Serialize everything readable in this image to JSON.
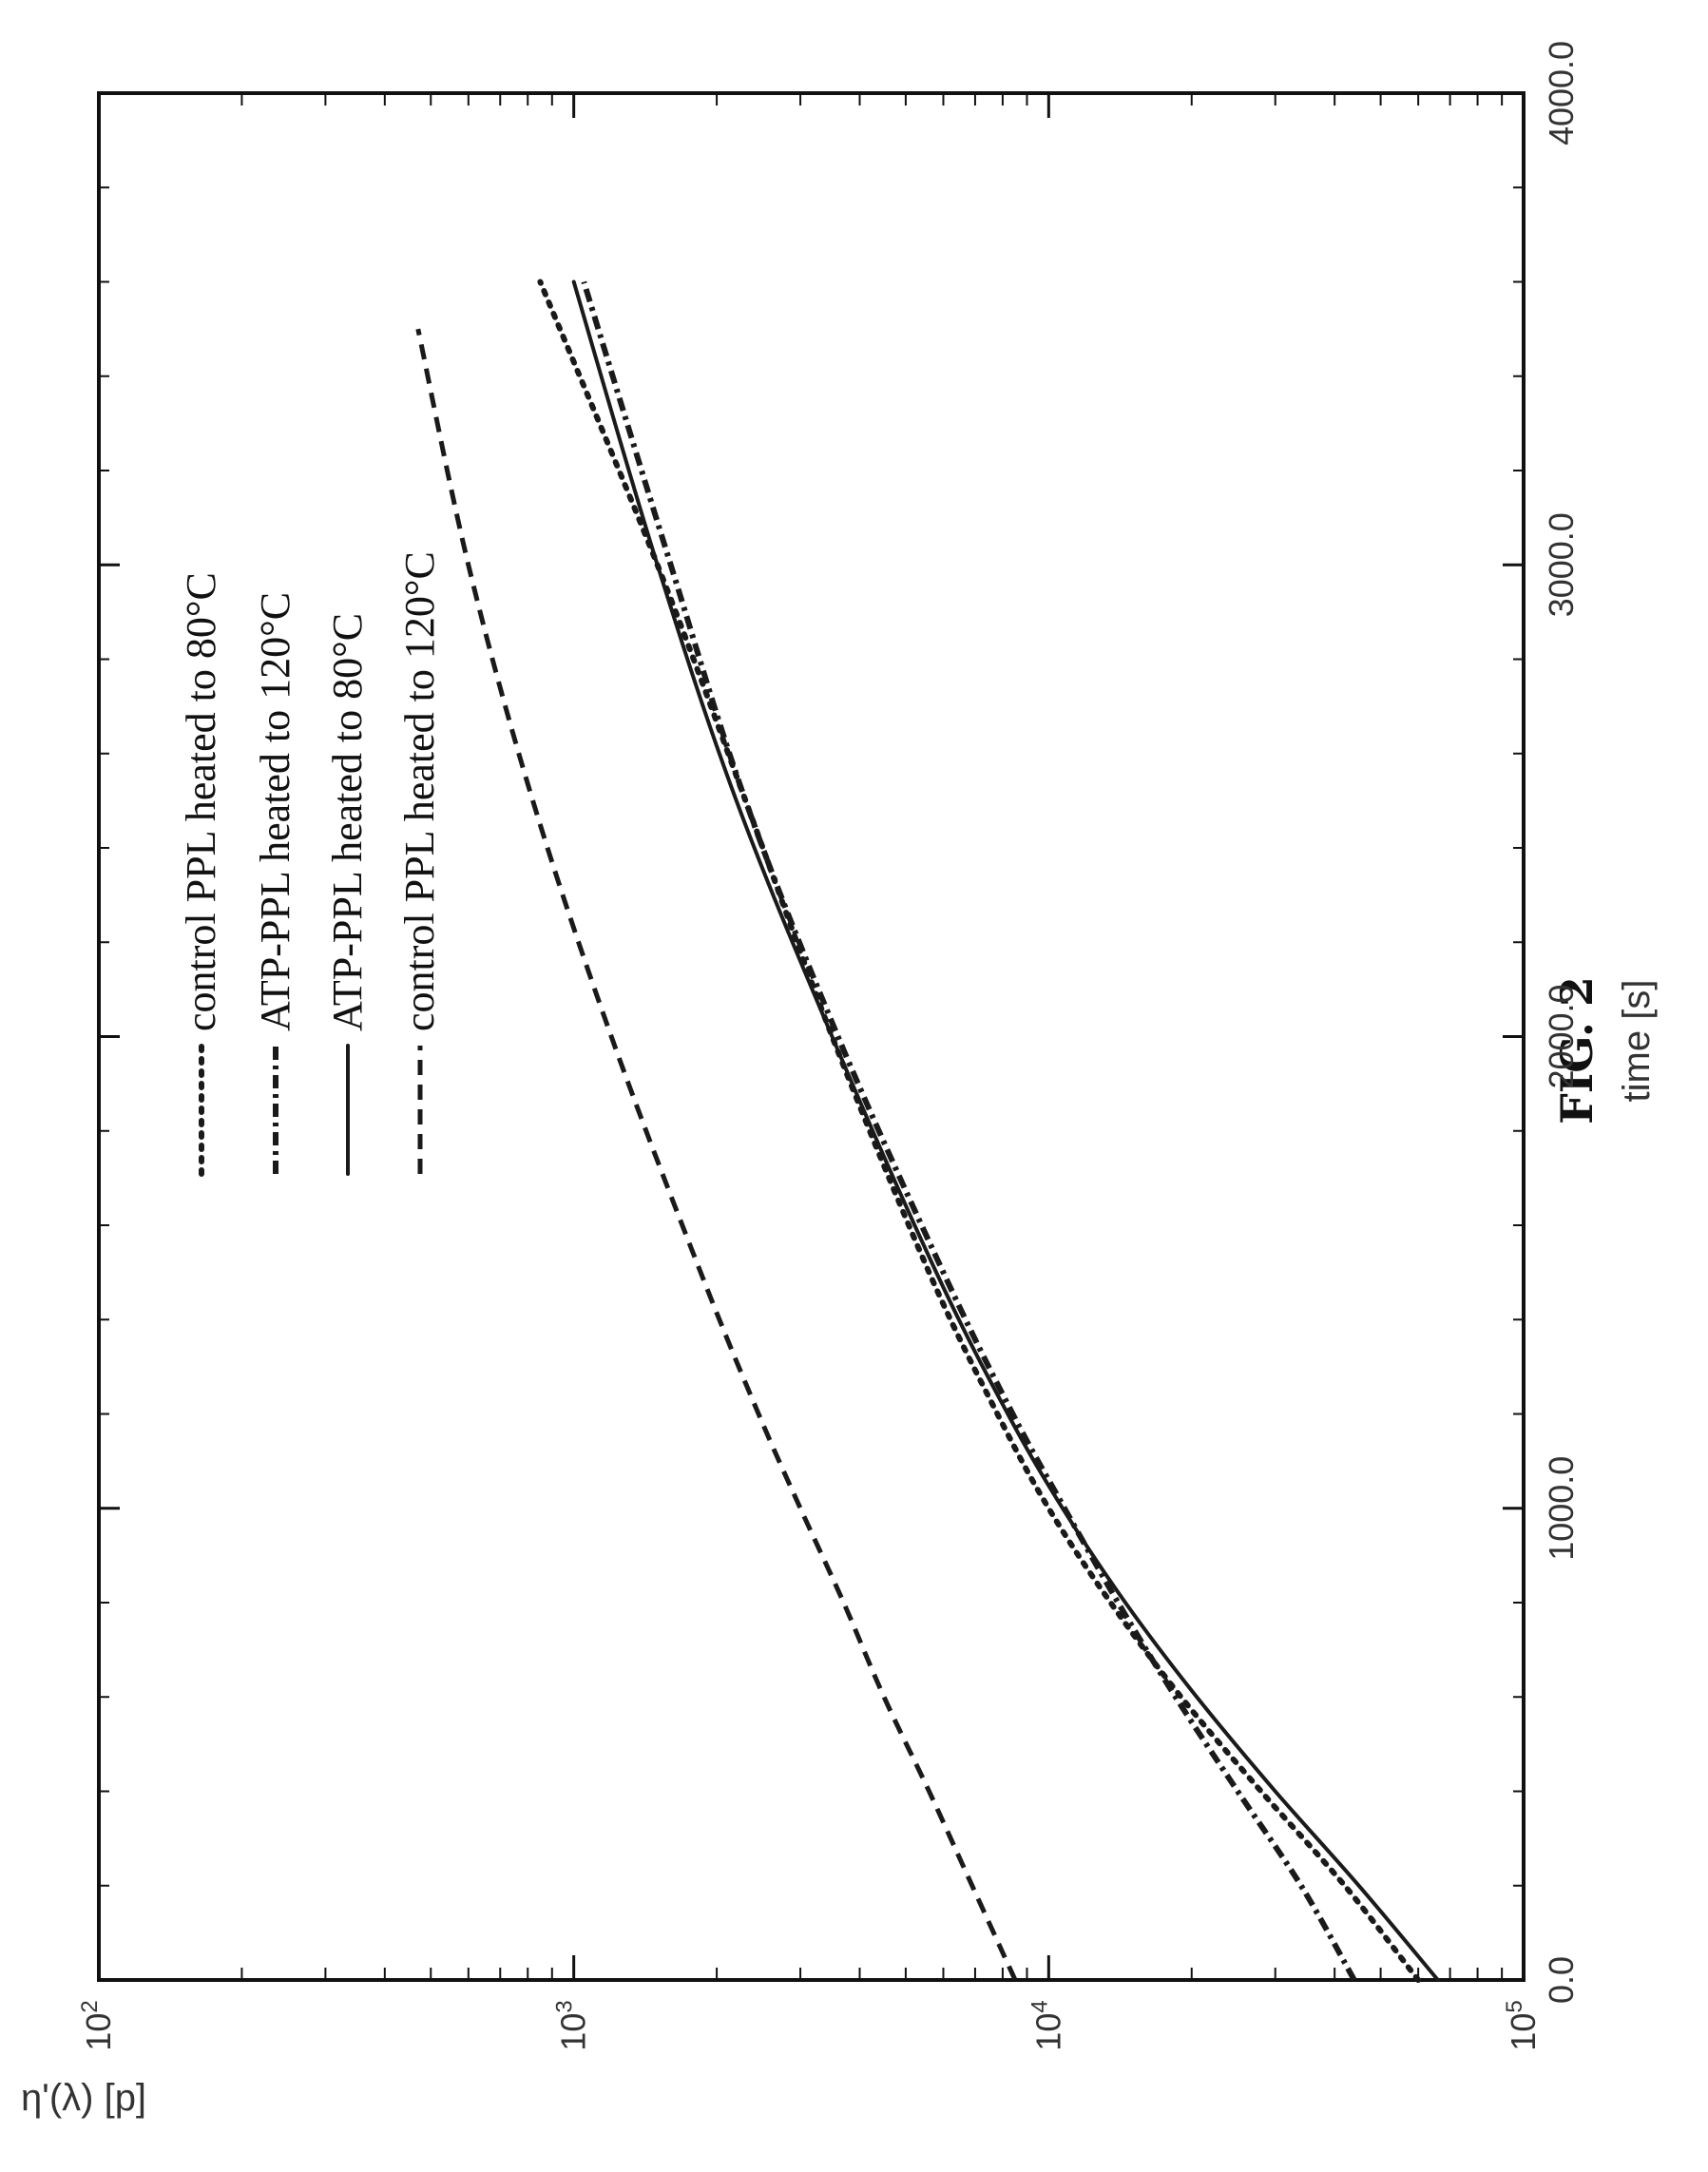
{
  "figure_label": "FIG. 2",
  "chart_data": {
    "type": "line",
    "orientation": "rotated 90° counter-clockwise on the page",
    "xlabel": "time [s]",
    "ylabel": "η'(λ) [p]",
    "xlim": [
      0,
      4000
    ],
    "ylim": [
      100,
      100000
    ],
    "yscale": "log",
    "x_ticks": [
      "0.0",
      "1000.0",
      "2000.0",
      "3000.0",
      "4000.0"
    ],
    "y_ticks": [
      {
        "base": "10",
        "exp": "2"
      },
      {
        "base": "10",
        "exp": "3"
      },
      {
        "base": "10",
        "exp": "4"
      },
      {
        "base": "10",
        "exp": "5"
      }
    ],
    "grid": false,
    "legend_position": "top-left",
    "series": [
      {
        "name": "control PPL heated to 80°C",
        "style": "dotted",
        "x": [
          0,
          200,
          400,
          600,
          800,
          1000,
          1200,
          1500,
          2000,
          2500,
          3000,
          3600
        ],
        "y": [
          60000,
          42000,
          28000,
          19000,
          13500,
          10000,
          7800,
          5600,
          3500,
          2300,
          1500,
          850
        ]
      },
      {
        "name": "ATP-PPL heated to 120°C",
        "style": "dash-dot",
        "x": [
          0,
          200,
          400,
          600,
          800,
          1000,
          1200,
          1500,
          2000,
          2500,
          3000,
          3600
        ],
        "y": [
          44000,
          34000,
          25000,
          18500,
          14000,
          10800,
          8400,
          6000,
          3600,
          2300,
          1600,
          1050
        ]
      },
      {
        "name": "ATP-PPL heated to 80°C",
        "style": "solid",
        "x": [
          0,
          200,
          400,
          600,
          800,
          1000,
          1200,
          1500,
          2000,
          2500,
          3000,
          3600
        ],
        "y": [
          66000,
          45000,
          30000,
          20500,
          14500,
          10700,
          8200,
          5800,
          3500,
          2200,
          1500,
          1000
        ]
      },
      {
        "name": "control PPL heated to 120°C",
        "style": "dashed",
        "x": [
          0,
          200,
          400,
          600,
          800,
          1000,
          1200,
          1500,
          2000,
          2500,
          3000,
          3500
        ],
        "y": [
          8500,
          6900,
          5600,
          4500,
          3700,
          3000,
          2450,
          1850,
          1200,
          820,
          600,
          470
        ]
      }
    ]
  }
}
